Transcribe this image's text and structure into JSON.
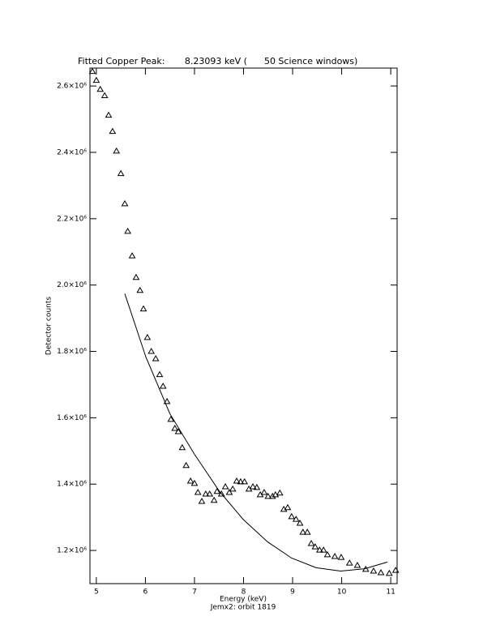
{
  "chart_data": {
    "type": "scatter",
    "title": "Fitted Copper Peak:       8.23093 keV (      50 Science windows)",
    "x_label": "Energy (keV)",
    "subtitle": "Jemx2: orbit 1819",
    "y_label": "Detector counts",
    "xlim": [
      4.87,
      11.13
    ],
    "ylim": [
      1100000,
      2654000
    ],
    "xticks": [
      5,
      6,
      7,
      8,
      9,
      10,
      11
    ],
    "yticks": [
      {
        "value": 1200000,
        "label": "1.2×10⁶"
      },
      {
        "value": 1400000,
        "label": "1.4×10⁶"
      },
      {
        "value": 1600000,
        "label": "1.6×10⁶"
      },
      {
        "value": 1800000,
        "label": "1.8×10⁶"
      },
      {
        "value": 2000000,
        "label": "2.0×10⁶"
      },
      {
        "value": 2200000,
        "label": "2.2×10⁶"
      },
      {
        "value": 2400000,
        "label": "2.4×10⁶"
      },
      {
        "value": 2600000,
        "label": "2.6×10⁶"
      }
    ],
    "series": [
      {
        "style": "markers",
        "color": "#000000",
        "x": [
          4.92,
          5.0,
          5.08,
          5.17,
          5.25,
          5.33,
          5.41,
          5.5,
          5.58,
          5.64,
          5.73,
          5.81,
          5.89,
          5.96,
          6.04,
          6.12,
          6.21,
          6.29,
          6.36,
          6.44,
          6.52,
          6.6,
          6.67,
          6.75,
          6.83,
          6.92,
          7.0,
          7.07,
          7.15,
          7.23,
          7.31,
          7.4,
          7.46,
          7.55,
          7.63,
          7.71,
          7.78,
          7.86,
          7.94,
          8.02,
          8.11,
          8.19,
          8.27,
          8.34,
          8.42,
          8.5,
          8.59,
          8.65,
          8.74,
          8.82,
          8.9,
          8.98,
          9.07,
          9.15,
          9.21,
          9.3,
          9.38,
          9.46,
          9.55,
          9.63,
          9.71,
          9.86,
          9.99,
          10.16,
          10.32,
          10.49,
          10.65,
          10.8,
          10.97,
          11.1
        ],
        "values": [
          2644000,
          2617000,
          2590000,
          2571000,
          2512000,
          2463000,
          2404000,
          2336000,
          2245000,
          2162000,
          2088000,
          2023000,
          1984000,
          1928000,
          1842000,
          1800000,
          1778000,
          1730000,
          1695000,
          1649000,
          1595000,
          1568000,
          1558000,
          1510000,
          1456000,
          1409000,
          1402000,
          1375000,
          1348000,
          1370000,
          1370000,
          1351000,
          1378000,
          1370000,
          1392000,
          1375000,
          1385000,
          1409000,
          1407000,
          1407000,
          1385000,
          1392000,
          1390000,
          1368000,
          1375000,
          1363000,
          1363000,
          1368000,
          1373000,
          1324000,
          1329000,
          1302000,
          1294000,
          1282000,
          1255000,
          1255000,
          1221000,
          1211000,
          1201000,
          1201000,
          1187000,
          1182000,
          1179000,
          1162000,
          1155000,
          1143000,
          1138000,
          1133000,
          1131000,
          1140000
        ]
      },
      {
        "style": "line",
        "color": "#000000",
        "x": [
          5.58,
          6.01,
          6.5,
          7.0,
          7.5,
          7.99,
          8.49,
          8.98,
          9.48,
          9.98,
          10.47,
          10.93
        ],
        "values": [
          1974000,
          1783000,
          1612000,
          1490000,
          1380000,
          1294000,
          1226000,
          1177000,
          1148000,
          1138000,
          1145000,
          1165000
        ]
      }
    ]
  }
}
